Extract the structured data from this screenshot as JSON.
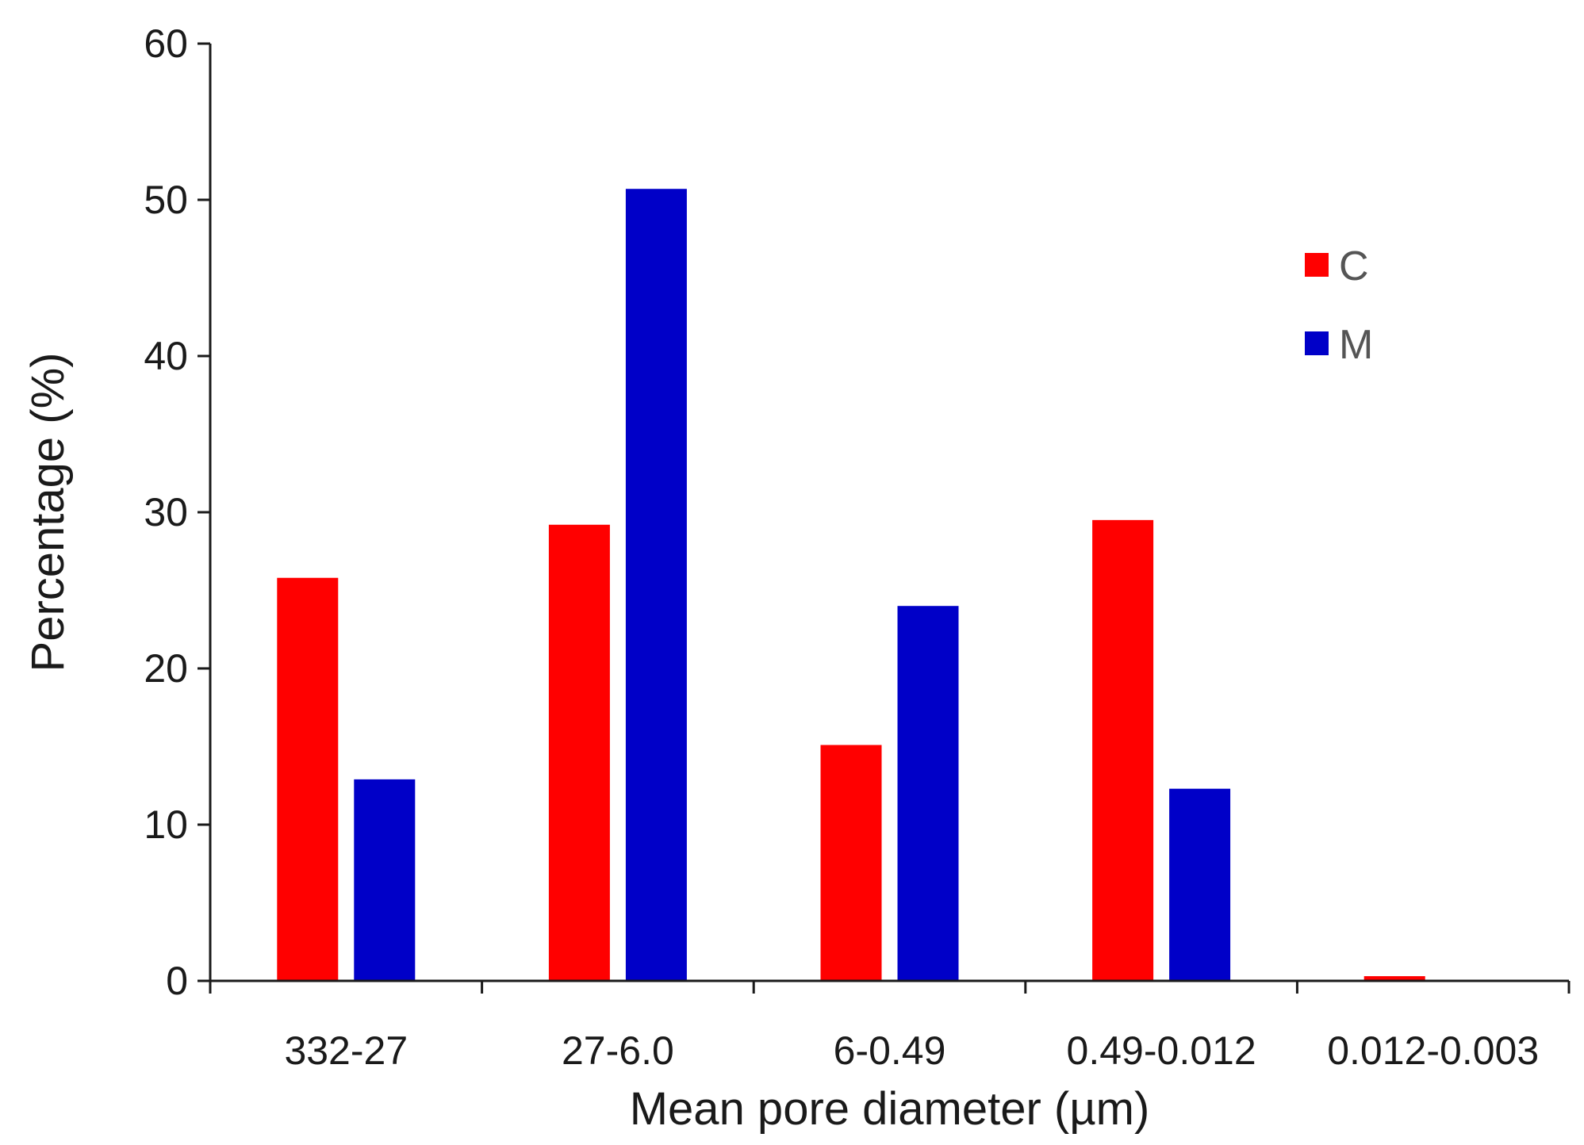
{
  "chart_data": {
    "type": "bar",
    "title": "",
    "xlabel": "Mean pore diameter (µm)",
    "ylabel": "Percentage (%)",
    "ylim": [
      0,
      60
    ],
    "yticks": [
      "0",
      "10",
      "20",
      "30",
      "40",
      "50",
      "60"
    ],
    "categories": [
      "332-27",
      "27-6.0",
      "6-0.49",
      "0.49-0.012",
      "0.012-0.003"
    ],
    "series": [
      {
        "name": "C",
        "color": "#ff0000",
        "values": [
          25.8,
          29.2,
          15.1,
          29.5,
          0.3
        ]
      },
      {
        "name": "M",
        "color": "#0000c8",
        "values": [
          12.9,
          50.7,
          24.0,
          12.3,
          0
        ]
      }
    ],
    "grid": false,
    "legend_position": "top-right"
  }
}
